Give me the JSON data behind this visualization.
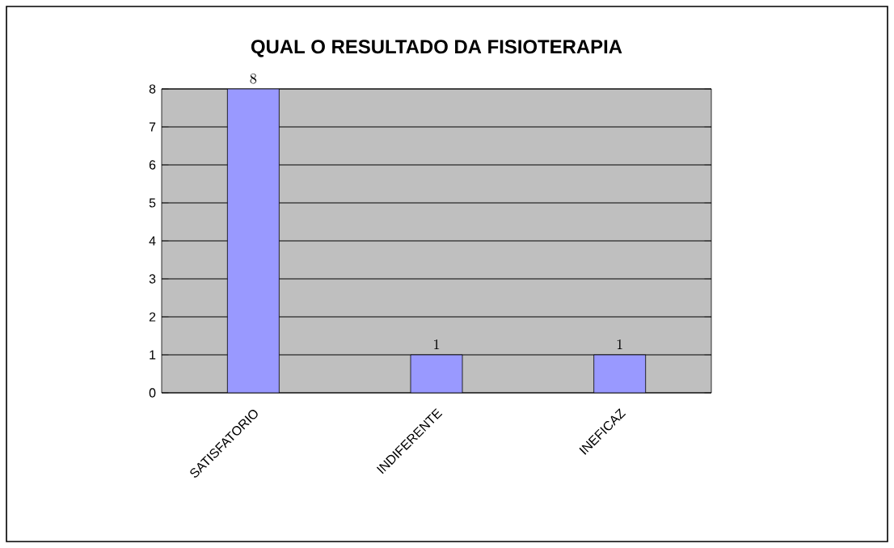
{
  "chart_data": {
    "type": "bar",
    "title": "QUAL O RESULTADO DA FISIOTERAPIA",
    "categories": [
      "SATISFATORIO",
      "INDIFERENTE",
      "INEFICAZ"
    ],
    "values": [
      8,
      1,
      1
    ],
    "color": "#9999ff",
    "ylim": [
      0,
      8
    ],
    "yticks": [
      0,
      1,
      2,
      3,
      4,
      5,
      6,
      7,
      8
    ],
    "grid": "y",
    "data_labels": true
  }
}
